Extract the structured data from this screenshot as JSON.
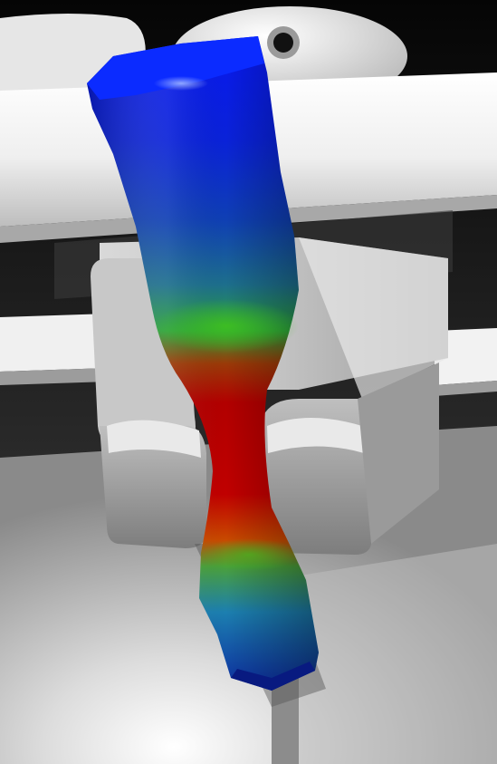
{
  "scene": {
    "colors": {
      "background": "#000000",
      "fixture_light": "#f2f2f2",
      "fixture_mid": "#c9c9c9",
      "fixture_dark": "#6e6e6e",
      "floor": "#d8d8d8",
      "stress_low": "#0a22d8",
      "stress_mid": "#1fb020",
      "stress_high": "#b20000"
    },
    "icons": {
      "bolt_hole": "bolt-hole-icon"
    }
  }
}
